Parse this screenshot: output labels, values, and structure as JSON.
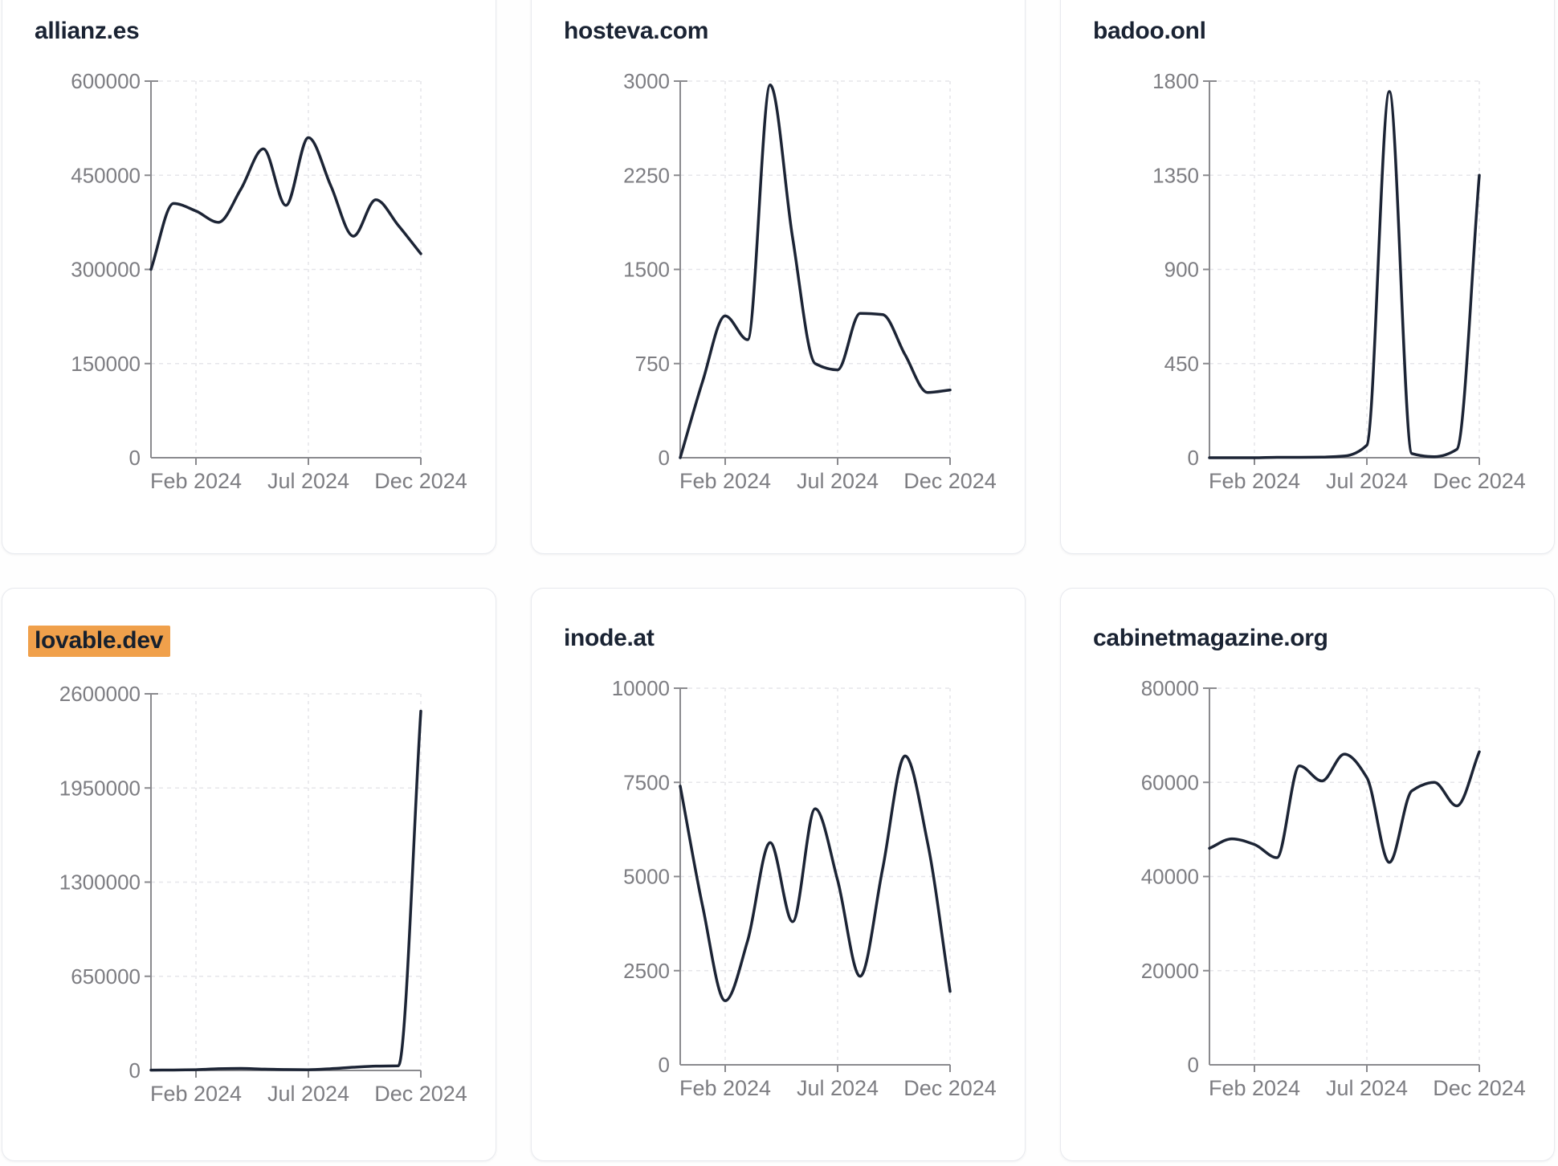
{
  "theme": {
    "line_color": "#1c2435",
    "title_color": "#1a2333",
    "axis_color": "#8a8a8e",
    "label_color": "#7d7d82",
    "grid_color": "#e6e6ea",
    "card_border": "#e8eaef",
    "card_bg": "#ffffff",
    "page_bg": "#fefefe",
    "highlight_bg": "#f0a04b",
    "highlight_text": "#16202e"
  },
  "x_axis": {
    "tick_labels": [
      "Feb 2024",
      "Jul 2024",
      "Dec 2024"
    ],
    "tick_indices": [
      2,
      7,
      12
    ]
  },
  "chart_data": [
    {
      "type": "line",
      "title": "allianz.es",
      "highlighted": false,
      "ylim": [
        0,
        600000
      ],
      "y_ticks": [
        0,
        150000,
        300000,
        450000,
        600000
      ],
      "x": [
        "2023-12",
        "2024-01",
        "2024-02",
        "2024-03",
        "2024-04",
        "2024-05",
        "2024-06",
        "2024-07",
        "2024-08",
        "2024-09",
        "2024-10",
        "2024-11",
        "2024-12"
      ],
      "values": [
        300000,
        405000,
        393000,
        375000,
        428000,
        492000,
        402000,
        510000,
        433000,
        353000,
        411000,
        370000,
        325000
      ]
    },
    {
      "type": "line",
      "title": "hosteva.com",
      "highlighted": false,
      "ylim": [
        0,
        3000
      ],
      "y_ticks": [
        0,
        750,
        1500,
        2250,
        3000
      ],
      "x": [
        "2023-12",
        "2024-01",
        "2024-02",
        "2024-03",
        "2024-04",
        "2024-05",
        "2024-06",
        "2024-07",
        "2024-08",
        "2024-09",
        "2024-10",
        "2024-11",
        "2024-12"
      ],
      "values": [
        0,
        610,
        1130,
        940,
        2970,
        1750,
        750,
        700,
        1150,
        1140,
        820,
        520,
        540
      ]
    },
    {
      "type": "line",
      "title": "badoo.onl",
      "highlighted": false,
      "ylim": [
        0,
        1800
      ],
      "y_ticks": [
        0,
        450,
        900,
        1350,
        1800
      ],
      "x": [
        "2023-12",
        "2024-01",
        "2024-02",
        "2024-03",
        "2024-04",
        "2024-05",
        "2024-06",
        "2024-07",
        "2024-08",
        "2024-09",
        "2024-10",
        "2024-11",
        "2024-12"
      ],
      "values": [
        0,
        0,
        0,
        2,
        2,
        3,
        8,
        60,
        1750,
        20,
        5,
        40,
        1350
      ]
    },
    {
      "type": "line",
      "title": "lovable.dev",
      "highlighted": true,
      "ylim": [
        0,
        2600000
      ],
      "y_ticks": [
        0,
        650000,
        1300000,
        1950000,
        2600000
      ],
      "x": [
        "2023-12",
        "2024-01",
        "2024-02",
        "2024-03",
        "2024-04",
        "2024-05",
        "2024-06",
        "2024-07",
        "2024-08",
        "2024-09",
        "2024-10",
        "2024-11",
        "2024-12"
      ],
      "values": [
        2000,
        3000,
        5000,
        12000,
        14000,
        9000,
        6000,
        5000,
        12000,
        22000,
        30000,
        32000,
        2480000
      ]
    },
    {
      "type": "line",
      "title": "inode.at",
      "highlighted": false,
      "ylim": [
        0,
        10000
      ],
      "y_ticks": [
        0,
        2500,
        5000,
        7500,
        10000
      ],
      "x": [
        "2023-12",
        "2024-01",
        "2024-02",
        "2024-03",
        "2024-04",
        "2024-05",
        "2024-06",
        "2024-07",
        "2024-08",
        "2024-09",
        "2024-10",
        "2024-11",
        "2024-12"
      ],
      "values": [
        7400,
        4200,
        1700,
        3300,
        5900,
        3800,
        6800,
        4900,
        2350,
        5200,
        8200,
        5900,
        1950
      ]
    },
    {
      "type": "line",
      "title": "cabinetmagazine.org",
      "highlighted": false,
      "ylim": [
        0,
        80000
      ],
      "y_ticks": [
        0,
        20000,
        40000,
        60000,
        80000
      ],
      "x": [
        "2023-12",
        "2024-01",
        "2024-02",
        "2024-03",
        "2024-04",
        "2024-05",
        "2024-06",
        "2024-07",
        "2024-08",
        "2024-09",
        "2024-10",
        "2024-11",
        "2024-12"
      ],
      "values": [
        46000,
        48000,
        46800,
        44000,
        63500,
        60300,
        66000,
        61000,
        43000,
        58200,
        60000,
        55000,
        66500
      ]
    }
  ]
}
